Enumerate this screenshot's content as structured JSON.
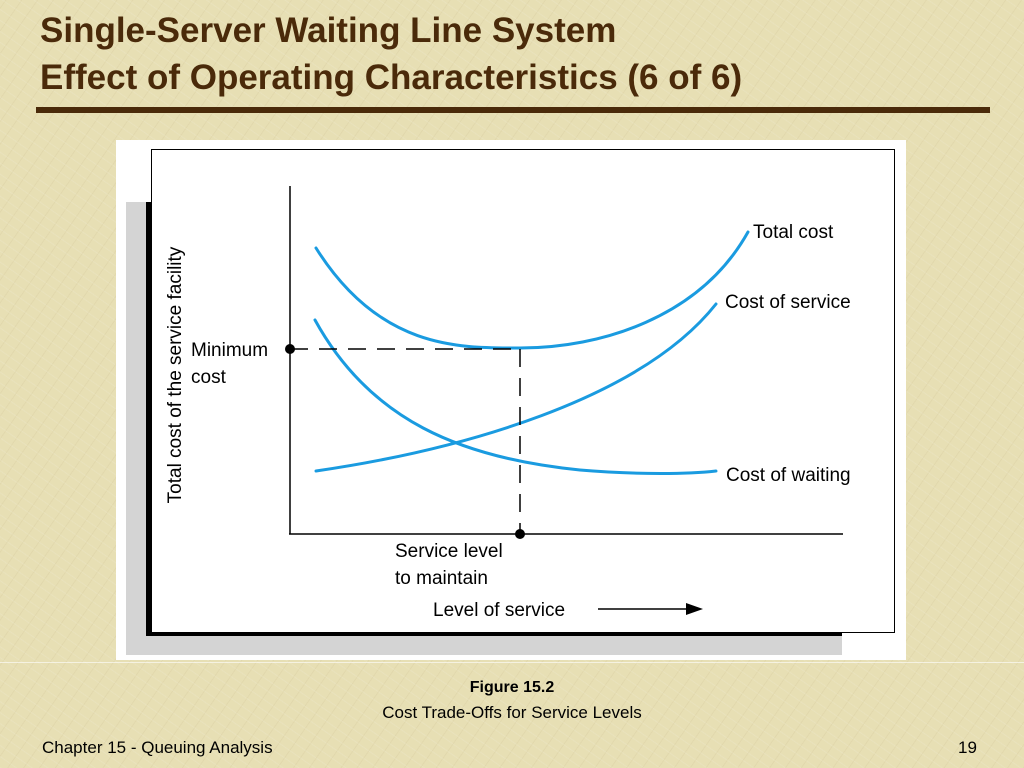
{
  "title": {
    "line1": "Single-Server Waiting Line System",
    "line2": "Effect of Operating Characteristics (6 of 6)"
  },
  "figure": {
    "ylabel": "Total cost of the service facility",
    "xlabel": "Level of service",
    "min_cost_label": [
      "Minimum",
      "cost"
    ],
    "service_level_label": [
      "Service level",
      "to maintain"
    ],
    "curves": [
      {
        "name": "Total cost",
        "color": "#1a9be0"
      },
      {
        "name": "Cost of service",
        "color": "#1a9be0"
      },
      {
        "name": "Cost of waiting",
        "color": "#1a9be0"
      }
    ],
    "number": "Figure 15.2",
    "caption": "Cost Trade-Offs for Service Levels"
  },
  "footer": {
    "left": "Chapter 15 - Queuing Analysis",
    "page": "19"
  }
}
